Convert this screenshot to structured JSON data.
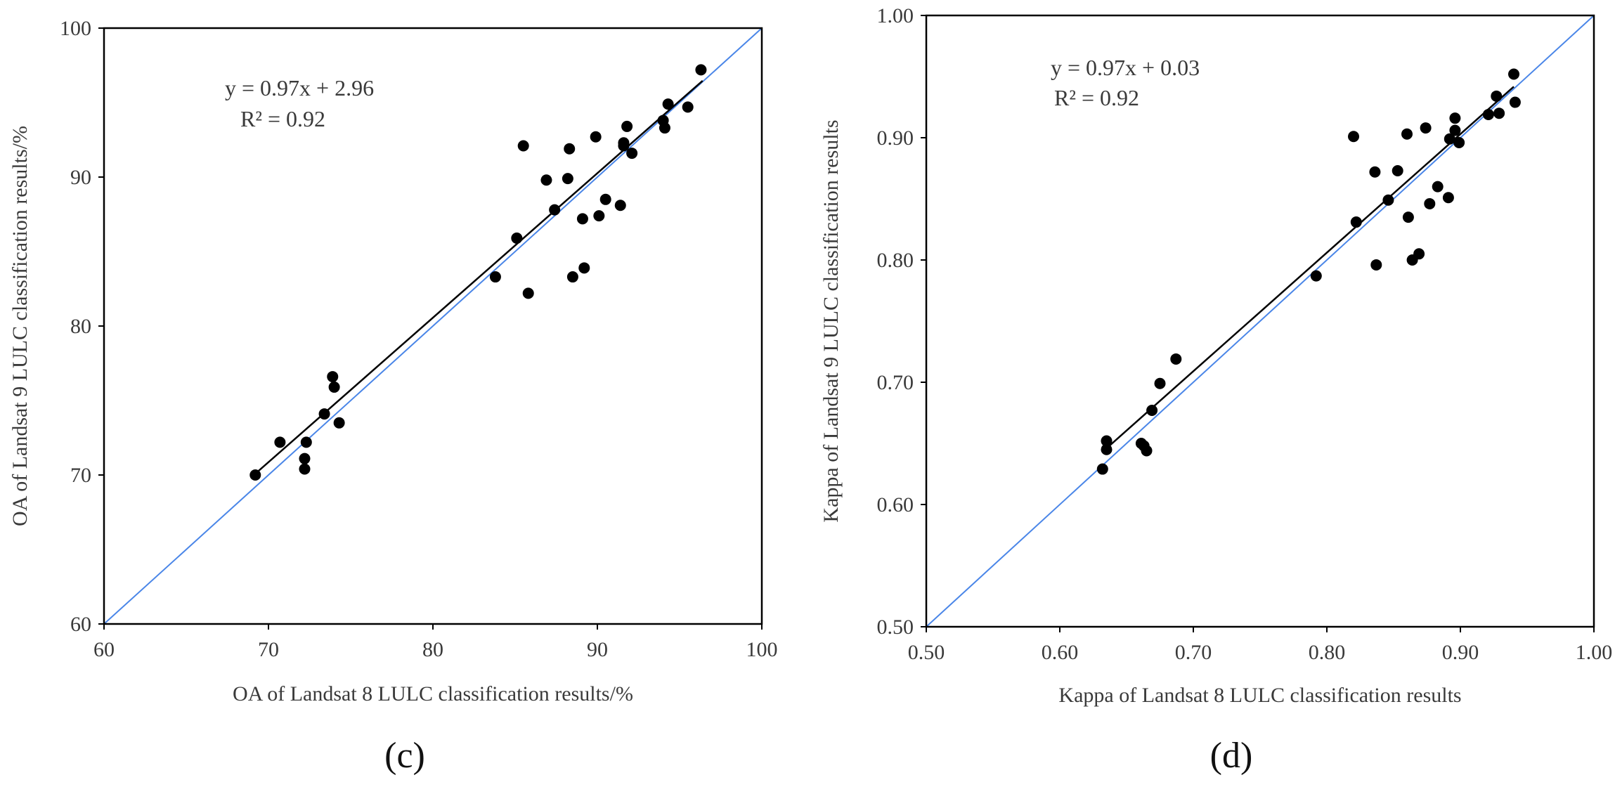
{
  "colors": {
    "identity_line": "#4a86e8",
    "fit_line": "#000000",
    "points": "#000000",
    "frame": "#000000"
  },
  "chart_data": [
    {
      "type": "scatter",
      "panel_label": "(c)",
      "xlabel": "OA of  Landsat 8 LULC classification results/%",
      "ylabel": "OA of  Landsat 9 LULC classification results/%",
      "xlim": [
        60,
        100
      ],
      "ylim": [
        60,
        100
      ],
      "xticks": [
        60,
        70,
        80,
        90,
        100
      ],
      "yticks": [
        60,
        70,
        80,
        90,
        100
      ],
      "tick_format": "int",
      "equation": "y = 0.97x + 2.96",
      "r2": "R² = 0.92",
      "fit": {
        "slope": 0.97,
        "intercept": 2.96,
        "x_range": [
          69.2,
          96.4
        ]
      },
      "identity_line": true,
      "points": [
        [
          69.2,
          70.0
        ],
        [
          70.7,
          72.2
        ],
        [
          72.3,
          72.2
        ],
        [
          72.2,
          71.1
        ],
        [
          72.2,
          70.4
        ],
        [
          73.4,
          74.1
        ],
        [
          73.9,
          76.6
        ],
        [
          74.0,
          75.9
        ],
        [
          74.3,
          73.5
        ],
        [
          83.8,
          83.3
        ],
        [
          85.1,
          85.9
        ],
        [
          85.5,
          92.1
        ],
        [
          85.8,
          82.2
        ],
        [
          86.9,
          89.8
        ],
        [
          87.4,
          87.8
        ],
        [
          88.2,
          89.9
        ],
        [
          88.3,
          91.9
        ],
        [
          88.5,
          83.3
        ],
        [
          89.1,
          87.2
        ],
        [
          89.2,
          83.9
        ],
        [
          89.9,
          92.7
        ],
        [
          90.1,
          87.4
        ],
        [
          90.5,
          88.5
        ],
        [
          91.4,
          88.1
        ],
        [
          91.6,
          92.3
        ],
        [
          91.6,
          92.1
        ],
        [
          91.8,
          93.4
        ],
        [
          92.1,
          91.6
        ],
        [
          94.0,
          93.8
        ],
        [
          94.1,
          93.3
        ],
        [
          94.3,
          94.9
        ],
        [
          95.5,
          94.7
        ],
        [
          96.3,
          97.2
        ]
      ]
    },
    {
      "type": "scatter",
      "panel_label": "(d)",
      "xlabel": "Kappa of  Landsat 8 LULC classification results",
      "ylabel": "Kappa of  Landsat 9 LULC classification results",
      "xlim": [
        0.5,
        1.0
      ],
      "ylim": [
        0.5,
        1.0
      ],
      "xticks": [
        0.5,
        0.6,
        0.7,
        0.8,
        0.9,
        1.0
      ],
      "yticks": [
        0.5,
        0.6,
        0.7,
        0.8,
        0.9,
        1.0
      ],
      "tick_format": "2dp",
      "equation": "y = 0.97x + 0.03",
      "r2": "R² = 0.92",
      "fit": {
        "slope": 0.97,
        "intercept": 0.03,
        "x_range": [
          0.632,
          0.94
        ]
      },
      "identity_line": true,
      "points": [
        [
          0.632,
          0.629
        ],
        [
          0.635,
          0.652
        ],
        [
          0.635,
          0.645
        ],
        [
          0.661,
          0.65
        ],
        [
          0.663,
          0.648
        ],
        [
          0.665,
          0.644
        ],
        [
          0.669,
          0.677
        ],
        [
          0.675,
          0.699
        ],
        [
          0.687,
          0.719
        ],
        [
          0.792,
          0.787
        ],
        [
          0.82,
          0.901
        ],
        [
          0.822,
          0.831
        ],
        [
          0.836,
          0.872
        ],
        [
          0.837,
          0.796
        ],
        [
          0.846,
          0.849
        ],
        [
          0.853,
          0.873
        ],
        [
          0.86,
          0.903
        ],
        [
          0.861,
          0.835
        ],
        [
          0.864,
          0.8
        ],
        [
          0.869,
          0.805
        ],
        [
          0.874,
          0.908
        ],
        [
          0.877,
          0.846
        ],
        [
          0.883,
          0.86
        ],
        [
          0.891,
          0.851
        ],
        [
          0.892,
          0.899
        ],
        [
          0.896,
          0.906
        ],
        [
          0.896,
          0.916
        ],
        [
          0.899,
          0.896
        ],
        [
          0.921,
          0.919
        ],
        [
          0.927,
          0.934
        ],
        [
          0.929,
          0.92
        ],
        [
          0.94,
          0.952
        ],
        [
          0.941,
          0.929
        ]
      ]
    }
  ]
}
